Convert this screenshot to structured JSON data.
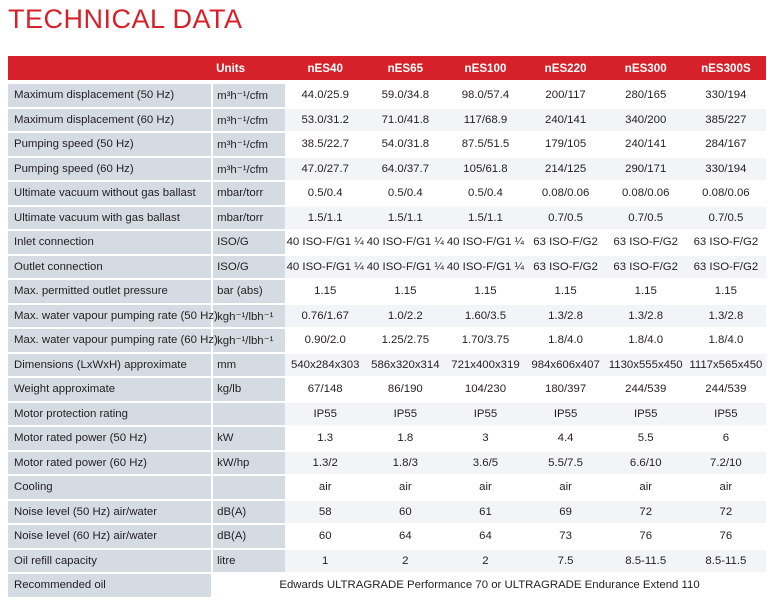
{
  "title": "TECHNICAL DATA",
  "header": {
    "label": "",
    "units": "Units",
    "models": [
      "nES40",
      "nES65",
      "nES100",
      "nES220",
      "nES300",
      "nES300S"
    ]
  },
  "rows": [
    {
      "label": "Maximum displacement (50 Hz)",
      "unit": "m³h⁻¹/cfm",
      "values": [
        "44.0/25.9",
        "59.0/34.8",
        "98.0/57.4",
        "200/117",
        "280/165",
        "330/194"
      ]
    },
    {
      "label": "Maximum displacement (60 Hz)",
      "unit": "m³h⁻¹/cfm",
      "values": [
        "53.0/31.2",
        "71.0/41.8",
        "117/68.9",
        "240/141",
        "340/200",
        "385/227"
      ]
    },
    {
      "label": "Pumping speed (50 Hz)",
      "unit": "m³h⁻¹/cfm",
      "values": [
        "38.5/22.7",
        "54.0/31.8",
        "87.5/51.5",
        "179/105",
        "240/141",
        "284/167"
      ]
    },
    {
      "label": "Pumping speed (60 Hz)",
      "unit": "m³h⁻¹/cfm",
      "values": [
        "47.0/27.7",
        "64.0/37.7",
        "105/61.8",
        "214/125",
        "290/171",
        "330/194"
      ]
    },
    {
      "label": "Ultimate vacuum without gas ballast",
      "unit": "mbar/torr",
      "values": [
        "0.5/0.4",
        "0.5/0.4",
        "0.5/0.4",
        "0.08/0.06",
        "0.08/0.06",
        "0.08/0.06"
      ]
    },
    {
      "label": "Ultimate vacuum with gas ballast",
      "unit": "mbar/torr",
      "values": [
        "1.5/1.1",
        "1.5/1.1",
        "1.5/1.1",
        "0.7/0.5",
        "0.7/0.5",
        "0.7/0.5"
      ]
    },
    {
      "label": "Inlet connection",
      "unit": "ISO/G",
      "values": [
        "40 ISO-F/G1 ¼",
        "40 ISO-F/G1 ¼",
        "40 ISO-F/G1 ¼",
        "63 ISO-F/G2",
        "63 ISO-F/G2",
        "63 ISO-F/G2"
      ]
    },
    {
      "label": "Outlet connection",
      "unit": "ISO/G",
      "values": [
        "40 ISO-F/G1 ¼",
        "40 ISO-F/G1 ¼",
        "40 ISO-F/G1 ¼",
        "63 ISO-F/G2",
        "63 ISO-F/G2",
        "63 ISO-F/G2"
      ]
    },
    {
      "label": "Max. permitted outlet pressure",
      "unit": "bar (abs)",
      "values": [
        "1.15",
        "1.15",
        "1.15",
        "1.15",
        "1.15",
        "1.15"
      ]
    },
    {
      "label": "Max. water vapour pumping rate (50 Hz)",
      "unit": "kgh⁻¹/lbh⁻¹",
      "values": [
        "0.76/1.67",
        "1.0/2.2",
        "1.60/3.5",
        "1.3/2.8",
        "1.3/2.8",
        "1.3/2.8"
      ]
    },
    {
      "label": "Max. water vapour pumping rate (60 Hz)",
      "unit": "kgh⁻¹/lbh⁻¹",
      "values": [
        "0.90/2.0",
        "1.25/2.75",
        "1.70/3.75",
        "1.8/4.0",
        "1.8/4.0",
        "1.8/4.0"
      ]
    },
    {
      "label": "Dimensions (LxWxH) approximate",
      "unit": "mm",
      "values": [
        "540x284x303",
        "586x320x314",
        "721x400x319",
        "984x606x407",
        "1130x555x450",
        "1117x565x450"
      ]
    },
    {
      "label": "Weight approximate",
      "unit": "kg/lb",
      "values": [
        "67/148",
        "86/190",
        "104/230",
        "180/397",
        "244/539",
        "244/539"
      ]
    },
    {
      "label": "Motor protection rating",
      "unit": "",
      "values": [
        "IP55",
        "IP55",
        "IP55",
        "IP55",
        "IP55",
        "IP55"
      ]
    },
    {
      "label": "Motor rated power (50 Hz)",
      "unit": "kW",
      "values": [
        "1.3",
        "1.8",
        "3",
        "4.4",
        "5.5",
        "6"
      ]
    },
    {
      "label": "Motor rated power (60 Hz)",
      "unit": "kW/hp",
      "values": [
        "1.3/2",
        "1.8/3",
        "3.6/5",
        "5.5/7.5",
        "6.6/10",
        "7.2/10"
      ]
    },
    {
      "label": "Cooling",
      "unit": "",
      "values": [
        "air",
        "air",
        "air",
        "air",
        "air",
        "air"
      ]
    },
    {
      "label": "Noise level (50 Hz) air/water",
      "unit": "dB(A)",
      "values": [
        "58",
        "60",
        "61",
        "69",
        "72",
        "72"
      ]
    },
    {
      "label": "Noise level (60 Hz) air/water",
      "unit": "dB(A)",
      "values": [
        "60",
        "64",
        "64",
        "73",
        "76",
        "76"
      ]
    },
    {
      "label": "Oil refill capacity",
      "unit": "litre",
      "values": [
        "1",
        "2",
        "2",
        "7.5",
        "8.5-11.5",
        "8.5-11.5"
      ]
    }
  ],
  "recommended_oil": {
    "label": "Recommended oil",
    "value": "Edwards ULTRAGRADE Performance 70 or ULTRAGRADE Endurance Extend 110"
  },
  "colors": {
    "accent": "#d6202a",
    "label_bg": "#d5dbe3",
    "stripe_bg": "#f2f4f7"
  }
}
